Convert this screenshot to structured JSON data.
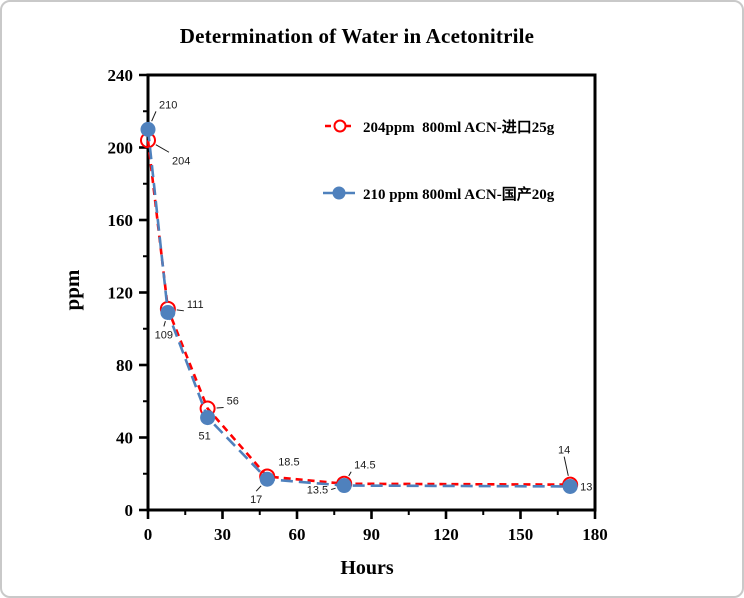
{
  "page": {
    "background_color": "#ffffff",
    "border_color": "#c9c9c9"
  },
  "chart_data": {
    "type": "line",
    "title": "Determination of Water in Acetonitrile",
    "xlabel": "Hours",
    "ylabel": "ppm",
    "xlim": [
      0,
      180
    ],
    "ylim": [
      0,
      240
    ],
    "x_major_ticks": [
      0,
      30,
      60,
      90,
      120,
      150,
      180
    ],
    "x_minor_ticks": [
      15,
      45,
      75,
      105,
      135,
      165
    ],
    "y_major_ticks": [
      0,
      40,
      80,
      120,
      160,
      200,
      240
    ],
    "y_minor_ticks": [
      20,
      60,
      100,
      140,
      180,
      220
    ],
    "grid": false,
    "legend_position": "inside-upper-right",
    "axis_color": "#000000",
    "annotation_color": "#1a1a1a",
    "series": [
      {
        "name": "204ppm  800ml ACN-进口25g",
        "color": "#ff0000",
        "marker": "open-circle",
        "line_style": "dashed",
        "x": [
          0,
          8,
          24,
          48,
          79,
          170
        ],
        "y": [
          204,
          111,
          56,
          18.5,
          14.5,
          14
        ],
        "point_labels": [
          "204",
          "111",
          "56",
          "18.5",
          "14.5",
          "14"
        ]
      },
      {
        "name": "210 ppm 800ml ACN-国产20g",
        "color": "#4f81bd",
        "marker": "filled-circle",
        "line_style": "dashed",
        "x": [
          0,
          8,
          24,
          48,
          79,
          170
        ],
        "y": [
          210,
          109,
          51,
          17,
          13.5,
          13
        ],
        "point_labels": [
          "210",
          "109",
          "51",
          "17",
          "13.5",
          "13"
        ]
      }
    ]
  }
}
